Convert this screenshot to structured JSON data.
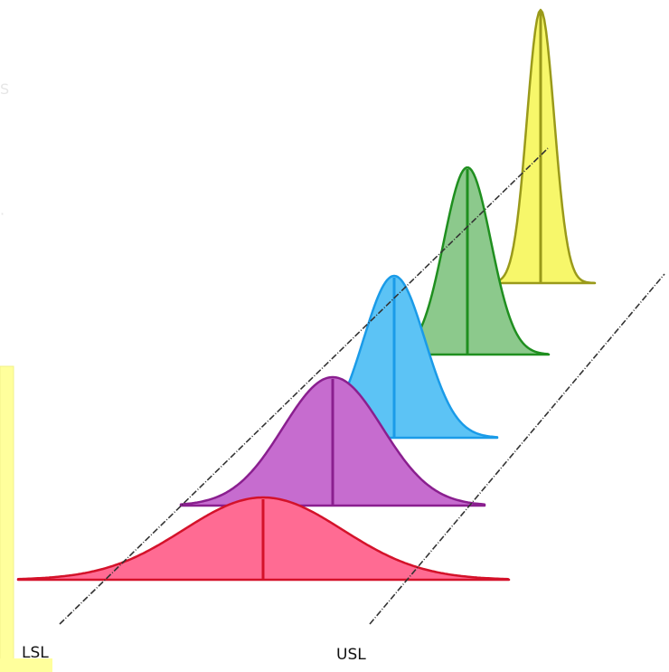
{
  "labels": {
    "lsl": "LSL",
    "usl": "USL"
  },
  "colors": {
    "background": "#ffffff",
    "panel_fill": "#ffff9c",
    "panel_edge": "#f2f28a",
    "spec_line": "#333333",
    "red_fill": "#ff6b93",
    "red_stroke": "#d4122a",
    "purple_fill": "#c66ccf",
    "purple_stroke": "#8a1f8f",
    "blue_fill": "#5cc3f5",
    "blue_stroke": "#1a9be8",
    "green_fill": "#8cc98c",
    "green_stroke": "#1f8f1f",
    "yellow_fill": "#f7f76a",
    "yellow_stroke": "#9a9a1a"
  }
}
